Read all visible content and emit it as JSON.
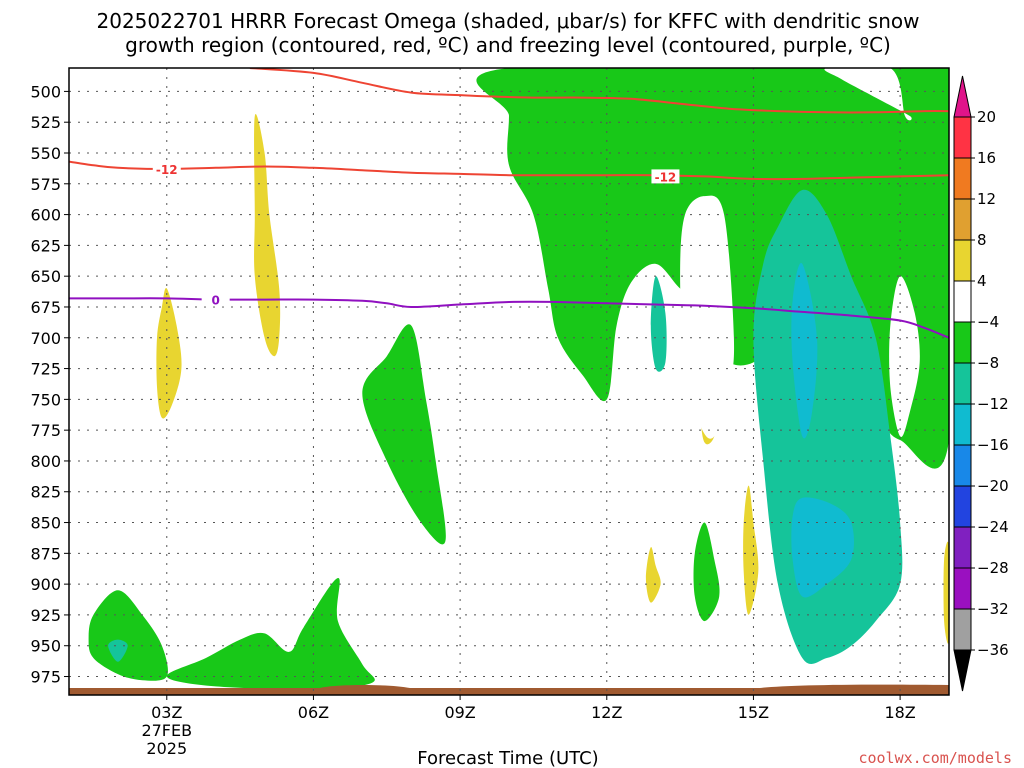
{
  "title_line1": "2025022701 HRRR Forecast Omega (shaded, μbar/s) for KFFC with dendritic snow",
  "title_line2": "growth region (contoured, red, ºC) and freezing level (contoured, purple, ºC)",
  "credit": "coolwx.com/models",
  "chart_data": {
    "type": "heatmap",
    "xlabel": "Forecast Time (UTC)",
    "x_ticks": [
      {
        "hour": 3,
        "label": "03Z",
        "sub1": "27FEB",
        "sub2": "2025"
      },
      {
        "hour": 6,
        "label": "06Z"
      },
      {
        "hour": 9,
        "label": "09Z"
      },
      {
        "hour": 12,
        "label": "12Z"
      },
      {
        "hour": 15,
        "label": "15Z"
      },
      {
        "hour": 18,
        "label": "18Z"
      }
    ],
    "xlim": [
      1.0,
      19.0
    ],
    "y_ticks": [
      500,
      525,
      550,
      575,
      600,
      625,
      650,
      675,
      700,
      725,
      750,
      775,
      800,
      825,
      850,
      875,
      900,
      925,
      950,
      975
    ],
    "ylim_hpa": [
      481,
      990
    ],
    "grid": true,
    "colorbar": {
      "labels": [
        "20",
        "16",
        "12",
        "8",
        "4",
        "−4",
        "−8",
        "−12",
        "−16",
        "−20",
        "−24",
        "−28",
        "−32",
        "−36"
      ],
      "colors": [
        "#ff3344",
        "#f07a20",
        "#e0a030",
        "#e8d530",
        "#ffffff",
        "#18c818",
        "#15c49a",
        "#10bbd0",
        "#1888e8",
        "#2244e0",
        "#8020c0",
        "#9a10c0",
        "#a0a0a0"
      ],
      "top_arrow_color": "#e0148a",
      "bottom_arrow_color": "#000000"
    },
    "contours": [
      {
        "name": "-12",
        "color": "#ee4433",
        "label_color": "#ee3333",
        "points": [
          [
            1.0,
            557
          ],
          [
            1.5,
            560
          ],
          [
            2.0,
            562
          ],
          [
            3.0,
            563
          ],
          [
            4.0,
            562
          ],
          [
            5.0,
            561
          ],
          [
            6.0,
            562
          ],
          [
            7.0,
            564
          ],
          [
            8.0,
            566
          ],
          [
            9.0,
            567
          ],
          [
            10.0,
            568
          ],
          [
            11.0,
            568
          ],
          [
            12.0,
            568
          ],
          [
            13.0,
            568
          ],
          [
            14.0,
            569
          ],
          [
            15.0,
            571
          ],
          [
            16.0,
            571
          ],
          [
            17.0,
            570
          ],
          [
            18.0,
            569
          ],
          [
            19.0,
            568
          ]
        ],
        "label_positions": [
          [
            3.0,
            563
          ],
          [
            13.2,
            569
          ]
        ]
      },
      {
        "name": "-20",
        "color": "#ee4433",
        "points": [
          [
            4.7,
            481
          ],
          [
            6.0,
            485
          ],
          [
            7.0,
            493
          ],
          [
            8.0,
            501
          ],
          [
            9.0,
            503
          ],
          [
            9.5,
            504
          ],
          [
            10.5,
            505
          ],
          [
            11.5,
            505
          ],
          [
            12.5,
            506
          ],
          [
            13.5,
            510
          ],
          [
            14.5,
            514
          ],
          [
            15.5,
            516
          ],
          [
            16.5,
            517
          ],
          [
            17.5,
            517
          ],
          [
            18.5,
            516
          ],
          [
            19.0,
            516
          ]
        ],
        "label_positions": []
      },
      {
        "name": "0",
        "color": "#9010c0",
        "label_color": "#9010c0",
        "points": [
          [
            1.0,
            668
          ],
          [
            2.0,
            668
          ],
          [
            3.0,
            668
          ],
          [
            4.0,
            669
          ],
          [
            5.0,
            669
          ],
          [
            6.0,
            669
          ],
          [
            7.0,
            670
          ],
          [
            7.5,
            672
          ],
          [
            8.0,
            675
          ],
          [
            9.0,
            673
          ],
          [
            10.0,
            671
          ],
          [
            11.0,
            671
          ],
          [
            12.0,
            672
          ],
          [
            13.0,
            673
          ],
          [
            14.0,
            674
          ],
          [
            15.0,
            676
          ],
          [
            16.0,
            679
          ],
          [
            17.0,
            682
          ],
          [
            18.0,
            686
          ],
          [
            18.5,
            692
          ],
          [
            19.0,
            700
          ]
        ],
        "label_positions": [
          [
            4.0,
            669
          ]
        ]
      }
    ],
    "surface": {
      "color": "#a05a30"
    },
    "omega_regions": [
      {
        "level": "-4",
        "color": "#18c818",
        "points": [
          [
            10.0,
            481
          ],
          [
            19.0,
            481
          ],
          [
            19.0,
            783
          ],
          [
            18.0,
            783
          ],
          [
            17.5,
            760
          ],
          [
            16.5,
            700
          ],
          [
            16.0,
            690
          ],
          [
            15.5,
            700
          ],
          [
            15.0,
            720
          ],
          [
            14.5,
            720
          ],
          [
            14.2,
            700
          ],
          [
            14.0,
            675
          ],
          [
            13.5,
            660
          ],
          [
            13.0,
            640
          ],
          [
            12.5,
            655
          ],
          [
            12.2,
            690
          ],
          [
            12.0,
            750
          ],
          [
            11.5,
            730
          ],
          [
            11.0,
            700
          ],
          [
            10.8,
            660
          ],
          [
            10.5,
            600
          ],
          [
            10.0,
            560
          ],
          [
            10.0,
            520
          ]
        ]
      },
      {
        "level": "-4",
        "color": "#18c818",
        "points": [
          [
            1.5,
            925
          ],
          [
            2.0,
            905
          ],
          [
            2.5,
            925
          ],
          [
            2.9,
            950
          ],
          [
            3.0,
            975
          ],
          [
            2.5,
            978
          ],
          [
            2.0,
            973
          ],
          [
            1.5,
            960
          ],
          [
            1.4,
            945
          ]
        ]
      },
      {
        "level": "-4",
        "color": "#18c818",
        "points": [
          [
            3.0,
            975
          ],
          [
            3.8,
            960
          ],
          [
            4.5,
            945
          ],
          [
            5.0,
            940
          ],
          [
            5.5,
            955
          ],
          [
            5.8,
            935
          ],
          [
            6.5,
            895
          ],
          [
            6.5,
            930
          ],
          [
            7.0,
            965
          ],
          [
            7.2,
            980
          ],
          [
            6.0,
            985
          ],
          [
            4.0,
            983
          ]
        ]
      },
      {
        "level": "-4",
        "color": "#18c818",
        "points": [
          [
            7.0,
            745
          ],
          [
            7.5,
            715
          ],
          [
            8.0,
            690
          ],
          [
            8.3,
            750
          ],
          [
            8.5,
            800
          ],
          [
            8.7,
            865
          ],
          [
            8.2,
            850
          ],
          [
            7.5,
            800
          ]
        ]
      },
      {
        "level": "-4",
        "color": "#18c818",
        "points": [
          [
            13.8,
            875
          ],
          [
            14.0,
            850
          ],
          [
            14.2,
            880
          ],
          [
            14.3,
            910
          ],
          [
            14.0,
            930
          ],
          [
            13.8,
            910
          ]
        ]
      },
      {
        "level": "-8",
        "color": "#15c49a",
        "points": [
          [
            16.0,
            580
          ],
          [
            16.5,
            600
          ],
          [
            17.0,
            650
          ],
          [
            17.5,
            700
          ],
          [
            17.8,
            780
          ],
          [
            18.0,
            850
          ],
          [
            18.0,
            900
          ],
          [
            17.5,
            930
          ],
          [
            17.0,
            950
          ],
          [
            16.5,
            960
          ],
          [
            16.0,
            960
          ],
          [
            15.5,
            900
          ],
          [
            15.2,
            800
          ],
          [
            15.0,
            700
          ],
          [
            15.2,
            640
          ],
          [
            15.5,
            610
          ]
        ]
      },
      {
        "level": "-8",
        "color": "#15c49a",
        "points": [
          [
            13.0,
            650
          ],
          [
            13.2,
            680
          ],
          [
            13.2,
            720
          ],
          [
            13.0,
            725
          ],
          [
            12.9,
            690
          ]
        ]
      },
      {
        "level": "-8",
        "color": "#15c49a",
        "points": [
          [
            2.0,
            945
          ],
          [
            2.2,
            950
          ],
          [
            2.0,
            963
          ],
          [
            1.8,
            950
          ]
        ]
      },
      {
        "level": "-12",
        "color": "#10bbd0",
        "points": [
          [
            16.0,
            640
          ],
          [
            16.3,
            700
          ],
          [
            16.2,
            760
          ],
          [
            16.0,
            780
          ],
          [
            15.8,
            720
          ],
          [
            15.8,
            670
          ]
        ]
      },
      {
        "level": "-12",
        "color": "#10bbd0",
        "points": [
          [
            16.0,
            830
          ],
          [
            16.6,
            835
          ],
          [
            17.0,
            850
          ],
          [
            17.0,
            880
          ],
          [
            16.5,
            900
          ],
          [
            16.0,
            910
          ],
          [
            15.8,
            880
          ],
          [
            15.8,
            845
          ]
        ]
      },
      {
        "level": "4",
        "color": "#e8d530",
        "points": [
          [
            4.8,
            520
          ],
          [
            5.0,
            550
          ],
          [
            5.1,
            600
          ],
          [
            5.3,
            660
          ],
          [
            5.3,
            700
          ],
          [
            5.2,
            715
          ],
          [
            5.0,
            700
          ],
          [
            4.8,
            650
          ],
          [
            4.8,
            600
          ]
        ]
      },
      {
        "level": "4",
        "color": "#e8d530",
        "points": [
          [
            3.0,
            660
          ],
          [
            3.2,
            690
          ],
          [
            3.3,
            725
          ],
          [
            3.1,
            755
          ],
          [
            2.9,
            765
          ],
          [
            2.8,
            740
          ],
          [
            2.8,
            700
          ],
          [
            2.9,
            675
          ]
        ]
      },
      {
        "level": "4",
        "color": "#e8d530",
        "points": [
          [
            14.0,
            665
          ],
          [
            14.2,
            700
          ],
          [
            14.3,
            750
          ],
          [
            14.2,
            780
          ],
          [
            14.0,
            785
          ],
          [
            13.9,
            760
          ],
          [
            13.8,
            710
          ]
        ]
      },
      {
        "level": "4",
        "color": "#e8d530",
        "points": [
          [
            14.9,
            820
          ],
          [
            15.0,
            850
          ],
          [
            15.1,
            890
          ],
          [
            14.9,
            925
          ],
          [
            14.8,
            890
          ],
          [
            14.8,
            850
          ]
        ]
      },
      {
        "level": "4",
        "color": "#e8d530",
        "points": [
          [
            12.9,
            870
          ],
          [
            13.0,
            885
          ],
          [
            13.1,
            900
          ],
          [
            12.9,
            915
          ],
          [
            12.8,
            895
          ]
        ]
      },
      {
        "level": "4",
        "color": "#e8d530",
        "points": [
          [
            18.9,
            880
          ],
          [
            19.0,
            870
          ],
          [
            19.0,
            945
          ],
          [
            18.9,
            930
          ]
        ]
      },
      {
        "level": "4",
        "color": "#ffffff",
        "points": [
          [
            13.6,
            600
          ],
          [
            14.0,
            585
          ],
          [
            14.4,
            600
          ],
          [
            14.6,
            700
          ],
          [
            14.5,
            740
          ],
          [
            14.2,
            780
          ],
          [
            13.9,
            770
          ],
          [
            13.6,
            720
          ],
          [
            13.5,
            650
          ]
        ]
      },
      {
        "level": "4",
        "color": "#ffffff",
        "points": [
          [
            18.0,
            650
          ],
          [
            18.3,
            680
          ],
          [
            18.4,
            720
          ],
          [
            18.2,
            760
          ],
          [
            18.0,
            780
          ],
          [
            17.8,
            740
          ],
          [
            17.8,
            690
          ]
        ]
      },
      {
        "level": "4",
        "color": "#ffffff",
        "points": [
          [
            16.5,
            481
          ],
          [
            17.8,
            481
          ],
          [
            18.1,
            520
          ],
          [
            18.2,
            520
          ],
          [
            17.5,
            505
          ],
          [
            16.8,
            490
          ]
        ]
      }
    ]
  }
}
